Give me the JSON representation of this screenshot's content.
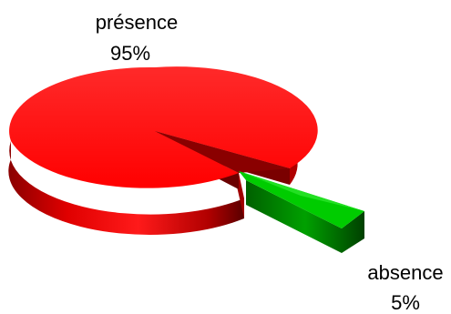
{
  "chart_data": {
    "type": "pie",
    "style": "3d-exploded",
    "title": "",
    "slices": [
      {
        "label": "présence",
        "value": 95,
        "value_label": "95%",
        "color": "#ff0000"
      },
      {
        "label": "absence",
        "value": 5,
        "value_label": "5%",
        "color": "#00cc00"
      }
    ],
    "legend": "none"
  }
}
